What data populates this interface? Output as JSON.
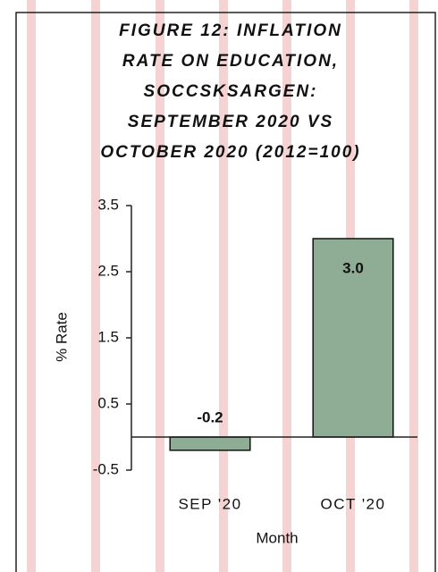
{
  "chart_data": {
    "type": "bar",
    "title": [
      "FIGURE 12: INFLATION",
      "RATE ON EDUCATION,",
      "SOCCSKSARGEN:",
      "SEPTEMBER 2020 VS",
      "OCTOBER 2020 (2012=100)"
    ],
    "x_label": "Month",
    "y_label": "% Rate",
    "categories": [
      "SEP '20",
      "OCT '20"
    ],
    "values": [
      -0.2,
      3.0
    ],
    "value_labels": [
      "-0.2",
      "3.0"
    ],
    "color": "#8fac94",
    "ylim": [
      -0.5,
      3.5
    ],
    "yticks": [
      3.5,
      2.5,
      1.5,
      0.5,
      -0.5
    ],
    "grid": false
  }
}
